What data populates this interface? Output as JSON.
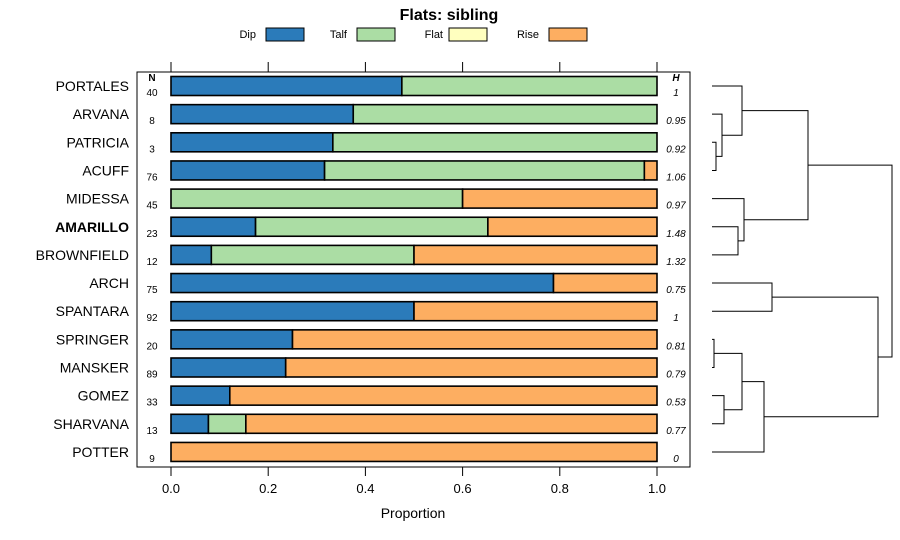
{
  "chart_data": {
    "type": "bar",
    "orientation": "horizontal",
    "stacked": true,
    "title": "Flats: sibling",
    "xlabel": "Proportion",
    "xlim": [
      0,
      1
    ],
    "xticks": [
      "0.0",
      "0.2",
      "0.4",
      "0.6",
      "0.8",
      "1.0"
    ],
    "n_header": "N",
    "h_header": "H",
    "legend": [
      {
        "name": "Dip",
        "color": "#2b7bba"
      },
      {
        "name": "Talf",
        "color": "#abdda4"
      },
      {
        "name": "Flat",
        "color": "#ffffbf"
      },
      {
        "name": "Rise",
        "color": "#fdae61"
      }
    ],
    "rows": [
      {
        "label": "PORTALES",
        "bold": false,
        "n": "40",
        "h": "1",
        "values": [
          0.475,
          0.525,
          0,
          0
        ]
      },
      {
        "label": "ARVANA",
        "bold": false,
        "n": "8",
        "h": "0.95",
        "values": [
          0.375,
          0.625,
          0,
          0
        ]
      },
      {
        "label": "PATRICIA",
        "bold": false,
        "n": "3",
        "h": "0.92",
        "values": [
          0.333,
          0.667,
          0,
          0
        ]
      },
      {
        "label": "ACUFF",
        "bold": false,
        "n": "76",
        "h": "1.06",
        "values": [
          0.316,
          0.658,
          0,
          0.026
        ]
      },
      {
        "label": "MIDESSA",
        "bold": false,
        "n": "45",
        "h": "0.97",
        "values": [
          0,
          0.6,
          0,
          0.4
        ]
      },
      {
        "label": "AMARILLO",
        "bold": true,
        "n": "23",
        "h": "1.48",
        "values": [
          0.174,
          0.478,
          0,
          0.348
        ]
      },
      {
        "label": "BROWNFIELD",
        "bold": false,
        "n": "12",
        "h": "1.32",
        "values": [
          0.083,
          0.417,
          0,
          0.5
        ]
      },
      {
        "label": "ARCH",
        "bold": false,
        "n": "75",
        "h": "0.75",
        "values": [
          0.787,
          0,
          0,
          0.213
        ]
      },
      {
        "label": "SPANTARA",
        "bold": false,
        "n": "92",
        "h": "1",
        "values": [
          0.5,
          0,
          0,
          0.5
        ]
      },
      {
        "label": "SPRINGER",
        "bold": false,
        "n": "20",
        "h": "0.81",
        "values": [
          0.25,
          0,
          0,
          0.75
        ]
      },
      {
        "label": "MANSKER",
        "bold": false,
        "n": "89",
        "h": "0.79",
        "values": [
          0.236,
          0,
          0,
          0.764
        ]
      },
      {
        "label": "GOMEZ",
        "bold": false,
        "n": "33",
        "h": "0.53",
        "values": [
          0.121,
          0,
          0,
          0.879
        ]
      },
      {
        "label": "SHARVANA",
        "bold": false,
        "n": "13",
        "h": "0.77",
        "values": [
          0.077,
          0.077,
          0,
          0.846
        ]
      },
      {
        "label": "POTTER",
        "bold": false,
        "n": "9",
        "h": "0",
        "values": [
          0,
          0,
          0,
          1
        ]
      }
    ],
    "dendrogram": {
      "leaves": [
        "PORTALES",
        "ARVANA",
        "PATRICIA",
        "ACUFF",
        "MIDESSA",
        "AMARILLO",
        "BROWNFIELD",
        "ARCH",
        "SPANTARA",
        "SPRINGER",
        "MANSKER",
        "GOMEZ",
        "SHARVANA",
        "POTTER"
      ],
      "merges": [
        {
          "a": "PATRICIA",
          "b": "ACUFF",
          "height": 0.04
        },
        {
          "a": "ARVANA",
          "b": "PATRICIA+ACUFF",
          "height": 0.1
        },
        {
          "a": "PORTALES",
          "b": "ARVANA+PATRICIA+ACUFF",
          "height": 0.3
        },
        {
          "a": "AMARILLO",
          "b": "BROWNFIELD",
          "height": 0.26
        },
        {
          "a": "MIDESSA",
          "b": "AMARILLO+BROWNFIELD",
          "height": 0.32
        },
        {
          "a": "PORTALES..ACUFF",
          "b": "MIDESSA..BROWNFIELD",
          "height": 0.96
        },
        {
          "a": "ARCH",
          "b": "SPANTARA",
          "height": 0.6
        },
        {
          "a": "SPRINGER",
          "b": "MANSKER",
          "height": 0.02
        },
        {
          "a": "GOMEZ",
          "b": "SHARVANA",
          "height": 0.12
        },
        {
          "a": "SPRINGER+MANSKER",
          "b": "GOMEZ+SHARVANA",
          "height": 0.3
        },
        {
          "a": "SPRINGER..SHARVANA",
          "b": "POTTER",
          "height": 0.52
        },
        {
          "a": "ARCH+SPANTARA",
          "b": "SPRINGER..POTTER",
          "height": 1.66
        },
        {
          "a": "PORTALES..BROWNFIELD",
          "b": "ARCH..POTTER",
          "height": 1.8
        }
      ]
    }
  }
}
